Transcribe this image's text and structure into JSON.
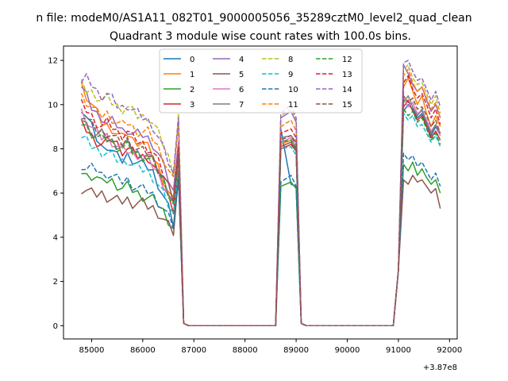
{
  "suptitle": "n file: modeM0/AS1A11_082T01_9000005056_35289cztM0_level2_quad_clean",
  "chart_data": {
    "type": "line",
    "title": "Quadrant 3 module wise count rates with 100.0s bins.",
    "xlabel": "",
    "ylabel": "",
    "xlim": [
      84450,
      92150
    ],
    "ylim": [
      -0.6,
      12.65
    ],
    "x_ticks": [
      85000,
      86000,
      87000,
      88000,
      89000,
      90000,
      91000,
      92000
    ],
    "x_tick_labels": [
      "85000",
      "86000",
      "87000",
      "88000",
      "89000",
      "90000",
      "91000",
      "92000"
    ],
    "y_ticks": [
      0,
      2,
      4,
      6,
      8,
      10,
      12
    ],
    "y_tick_labels": [
      "0",
      "2",
      "4",
      "6",
      "8",
      "10",
      "12"
    ],
    "offset_text": "+3.87e8",
    "legend": {
      "position": "top-center",
      "columns": 4
    },
    "gap_segments": [
      {
        "x_start": 86800,
        "x_end": 88600
      },
      {
        "x_start": 89200,
        "x_end": 90900
      }
    ],
    "series": [
      {
        "name": "0",
        "color": "#1f77b4",
        "dash": "solid",
        "seg1": [
          9.9,
          9.3,
          8.7,
          8.0,
          8.2,
          7.8,
          7.4,
          7.7,
          7.5,
          7.3,
          7.2,
          6.9,
          6.2,
          5.5,
          4.6
        ],
        "peak": [
          8.9,
          6.4,
          6.3
        ],
        "seg3": [
          9.7,
          10.0,
          9.8,
          9.4,
          9.6,
          9.1,
          8.6,
          9.0,
          8.6
        ]
      },
      {
        "name": "1",
        "color": "#ff7f0e",
        "dash": "solid",
        "seg1": [
          10.9,
          10.3,
          9.8,
          9.2,
          9.0,
          8.9,
          8.4,
          8.7,
          8.3,
          8.4,
          8.1,
          7.6,
          7.0,
          6.2,
          5.6
        ],
        "peak": [
          8.2,
          8.4,
          8.0
        ],
        "seg3": [
          10.8,
          11.2,
          10.6,
          10.0,
          10.4,
          9.6,
          9.0,
          9.5,
          9.0
        ]
      },
      {
        "name": "2",
        "color": "#2ca02c",
        "dash": "solid",
        "seg1": [
          7.0,
          6.7,
          6.9,
          6.4,
          6.6,
          6.5,
          6.2,
          6.3,
          6.1,
          5.9,
          5.8,
          5.7,
          5.4,
          4.9,
          4.4
        ],
        "peak": [
          6.3,
          6.5,
          6.2
        ],
        "seg3": [
          7.3,
          7.0,
          7.4,
          6.8,
          7.1,
          6.7,
          6.4,
          6.6,
          6.0
        ]
      },
      {
        "name": "3",
        "color": "#d62728",
        "dash": "solid",
        "seg1": [
          9.1,
          8.8,
          8.4,
          8.2,
          8.3,
          8.5,
          7.9,
          8.0,
          7.8,
          7.6,
          7.7,
          7.2,
          6.6,
          6.0,
          5.3
        ],
        "peak": [
          8.0,
          8.2,
          7.9
        ],
        "seg3": [
          9.9,
          10.2,
          9.7,
          9.3,
          9.5,
          9.0,
          8.5,
          8.8,
          8.4
        ]
      },
      {
        "name": "4",
        "color": "#9467bd",
        "dash": "solid",
        "seg1": [
          10.8,
          10.2,
          9.6,
          9.5,
          9.1,
          9.3,
          8.8,
          8.9,
          8.6,
          8.7,
          8.5,
          8.2,
          7.6,
          6.8,
          6.0
        ],
        "peak": [
          9.4,
          9.7,
          9.2
        ],
        "seg3": [
          11.8,
          11.4,
          10.9,
          10.6,
          10.8,
          10.2,
          9.7,
          10.0,
          9.4
        ]
      },
      {
        "name": "5",
        "color": "#8c564b",
        "dash": "solid",
        "seg1": [
          6.2,
          6.1,
          5.9,
          6.0,
          5.8,
          5.7,
          5.6,
          5.7,
          5.5,
          5.6,
          5.4,
          5.3,
          5.0,
          4.6,
          4.2
        ],
        "peak": [
          8.1,
          8.3,
          7.9
        ],
        "seg3": [
          6.6,
          6.4,
          6.8,
          6.5,
          6.6,
          6.3,
          6.0,
          6.2,
          5.3
        ]
      },
      {
        "name": "6",
        "color": "#e377c2",
        "dash": "solid",
        "seg1": [
          9.7,
          9.2,
          8.8,
          8.5,
          8.6,
          8.2,
          8.0,
          7.9,
          7.7,
          7.8,
          7.5,
          7.2,
          6.7,
          6.1,
          5.4
        ],
        "peak": [
          8.3,
          8.5,
          8.1
        ],
        "seg3": [
          10.3,
          9.9,
          10.1,
          9.6,
          9.7,
          9.3,
          8.8,
          9.1,
          8.6
        ]
      },
      {
        "name": "7",
        "color": "#7f7f7f",
        "dash": "solid",
        "seg1": [
          9.4,
          9.0,
          8.6,
          8.7,
          8.4,
          8.3,
          8.1,
          8.2,
          7.9,
          7.7,
          7.8,
          7.4,
          6.9,
          6.3,
          5.6
        ],
        "peak": [
          8.5,
          8.6,
          8.3
        ],
        "seg3": [
          10.1,
          10.4,
          9.9,
          9.5,
          9.8,
          9.2,
          8.7,
          9.1,
          8.7
        ]
      },
      {
        "name": "8",
        "color": "#bcbd22",
        "dash": "dashed",
        "seg1": [
          10.9,
          10.6,
          10.5,
          10.2,
          10.3,
          10.0,
          9.8,
          9.9,
          9.6,
          9.4,
          9.5,
          9.1,
          8.5,
          7.8,
          7.0
        ],
        "peak": [
          9.5,
          9.8,
          9.3
        ],
        "seg3": [
          11.6,
          11.8,
          11.2,
          10.9,
          11.0,
          10.5,
          10.0,
          10.4,
          9.6
        ]
      },
      {
        "name": "9",
        "color": "#17becf",
        "dash": "dashed",
        "seg1": [
          8.5,
          8.3,
          8.0,
          7.9,
          7.8,
          7.6,
          7.4,
          7.5,
          7.2,
          7.1,
          7.0,
          6.7,
          6.2,
          5.6,
          5.0
        ],
        "peak": [
          8.0,
          8.1,
          7.7
        ],
        "seg3": [
          9.6,
          9.3,
          9.5,
          9.0,
          9.1,
          8.7,
          8.3,
          8.6,
          8.1
        ]
      },
      {
        "name": "10",
        "color": "#1f77b4",
        "dash": "dashed",
        "seg1": [
          7.3,
          7.0,
          7.2,
          6.8,
          6.9,
          6.7,
          6.5,
          6.6,
          6.3,
          6.2,
          6.1,
          5.9,
          5.5,
          5.0,
          4.5
        ],
        "peak": [
          6.5,
          6.8,
          6.3
        ],
        "seg3": [
          7.8,
          7.5,
          7.7,
          7.2,
          7.4,
          7.0,
          6.6,
          6.9,
          6.3
        ]
      },
      {
        "name": "11",
        "color": "#ff7f0e",
        "dash": "dashed",
        "seg1": [
          10.4,
          10.1,
          9.7,
          9.5,
          9.6,
          9.3,
          9.0,
          9.2,
          8.9,
          8.7,
          8.8,
          8.4,
          7.9,
          7.2,
          6.5
        ],
        "peak": [
          9.0,
          9.3,
          8.8
        ],
        "seg3": [
          11.3,
          11.6,
          11.0,
          10.6,
          10.8,
          10.3,
          9.8,
          10.1,
          9.4
        ]
      },
      {
        "name": "12",
        "color": "#2ca02c",
        "dash": "dashed",
        "seg1": [
          9.2,
          8.9,
          8.6,
          8.4,
          8.5,
          8.2,
          8.0,
          8.1,
          7.8,
          7.7,
          7.6,
          7.3,
          6.8,
          6.2,
          5.5
        ],
        "peak": [
          8.3,
          8.4,
          8.0
        ],
        "seg3": [
          9.8,
          9.5,
          9.7,
          9.2,
          9.4,
          8.9,
          8.4,
          8.7,
          8.2
        ]
      },
      {
        "name": "13",
        "color": "#d62728",
        "dash": "dashed",
        "seg1": [
          10.0,
          9.7,
          9.3,
          9.0,
          9.2,
          8.9,
          8.6,
          8.8,
          8.4,
          8.3,
          8.1,
          7.8,
          7.2,
          6.5,
          5.8
        ],
        "peak": [
          8.7,
          8.9,
          8.5
        ],
        "seg3": [
          11.0,
          11.3,
          10.7,
          10.3,
          10.5,
          10.0,
          9.4,
          9.8,
          9.1
        ]
      },
      {
        "name": "14",
        "color": "#9467bd",
        "dash": "dashed",
        "seg1": [
          11.0,
          11.2,
          10.7,
          10.4,
          10.5,
          10.1,
          9.8,
          10.0,
          9.7,
          9.5,
          9.3,
          9.0,
          8.3,
          7.6,
          6.8
        ],
        "peak": [
          9.6,
          10.0,
          9.4
        ],
        "seg3": [
          11.9,
          12.0,
          11.5,
          11.1,
          11.2,
          10.7,
          10.2,
          10.6,
          9.9
        ]
      },
      {
        "name": "15",
        "color": "#8c564b",
        "dash": "dashed",
        "seg1": [
          9.6,
          9.3,
          8.9,
          8.7,
          8.8,
          8.5,
          8.2,
          8.4,
          8.1,
          7.9,
          7.8,
          7.5,
          7.0,
          6.4,
          5.7
        ],
        "peak": [
          8.4,
          8.6,
          8.2
        ],
        "seg3": [
          10.4,
          10.1,
          10.3,
          9.8,
          9.9,
          9.5,
          9.0,
          9.3,
          8.7
        ]
      }
    ]
  }
}
